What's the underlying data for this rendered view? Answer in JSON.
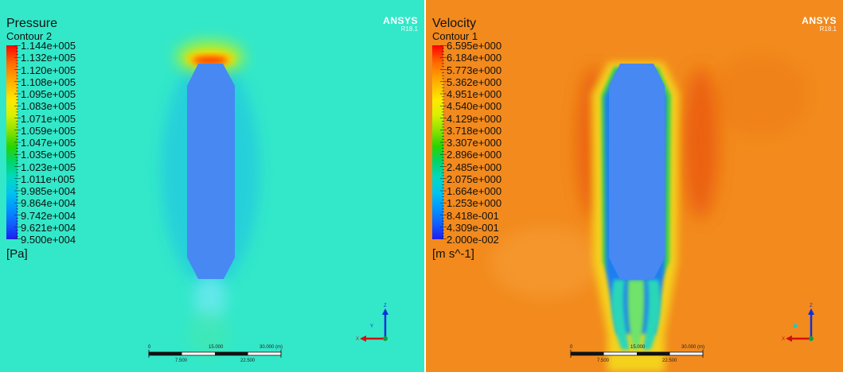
{
  "panels": [
    {
      "variable": "Pressure",
      "contour": "Contour 2",
      "unit": "[Pa]",
      "legend_labels": [
        "1.144e+005",
        "1.132e+005",
        "1.120e+005",
        "1.108e+005",
        "1.095e+005",
        "1.083e+005",
        "1.071e+005",
        "1.059e+005",
        "1.047e+005",
        "1.035e+005",
        "1.023e+005",
        "1.011e+005",
        "9.985e+004",
        "9.864e+004",
        "9.742e+004",
        "9.621e+004",
        "9.500e+004"
      ],
      "brand": "ANSYS",
      "version": "R18.1",
      "background_color": "#33e8c9"
    },
    {
      "variable": "Velocity",
      "contour": "Contour 1",
      "unit": "[m s^-1]",
      "legend_labels": [
        "6.595e+000",
        "6.184e+000",
        "5.773e+000",
        "5.362e+000",
        "4.951e+000",
        "4.540e+000",
        "4.129e+000",
        "3.718e+000",
        "3.307e+000",
        "2.896e+000",
        "2.485e+000",
        "2.075e+000",
        "1.664e+000",
        "1.253e+000",
        "8.418e-001",
        "4.309e-001",
        "2.000e-002"
      ],
      "brand": "ANSYS",
      "version": "R18.1",
      "background_color": "#f28a1d"
    }
  ],
  "scale_bar": {
    "top_labels": [
      "0",
      "15.000",
      "30.000  (m)"
    ],
    "bottom_labels": [
      "7.500",
      "22.500"
    ]
  },
  "axis_labels": {
    "z": "Z",
    "x": "X"
  }
}
